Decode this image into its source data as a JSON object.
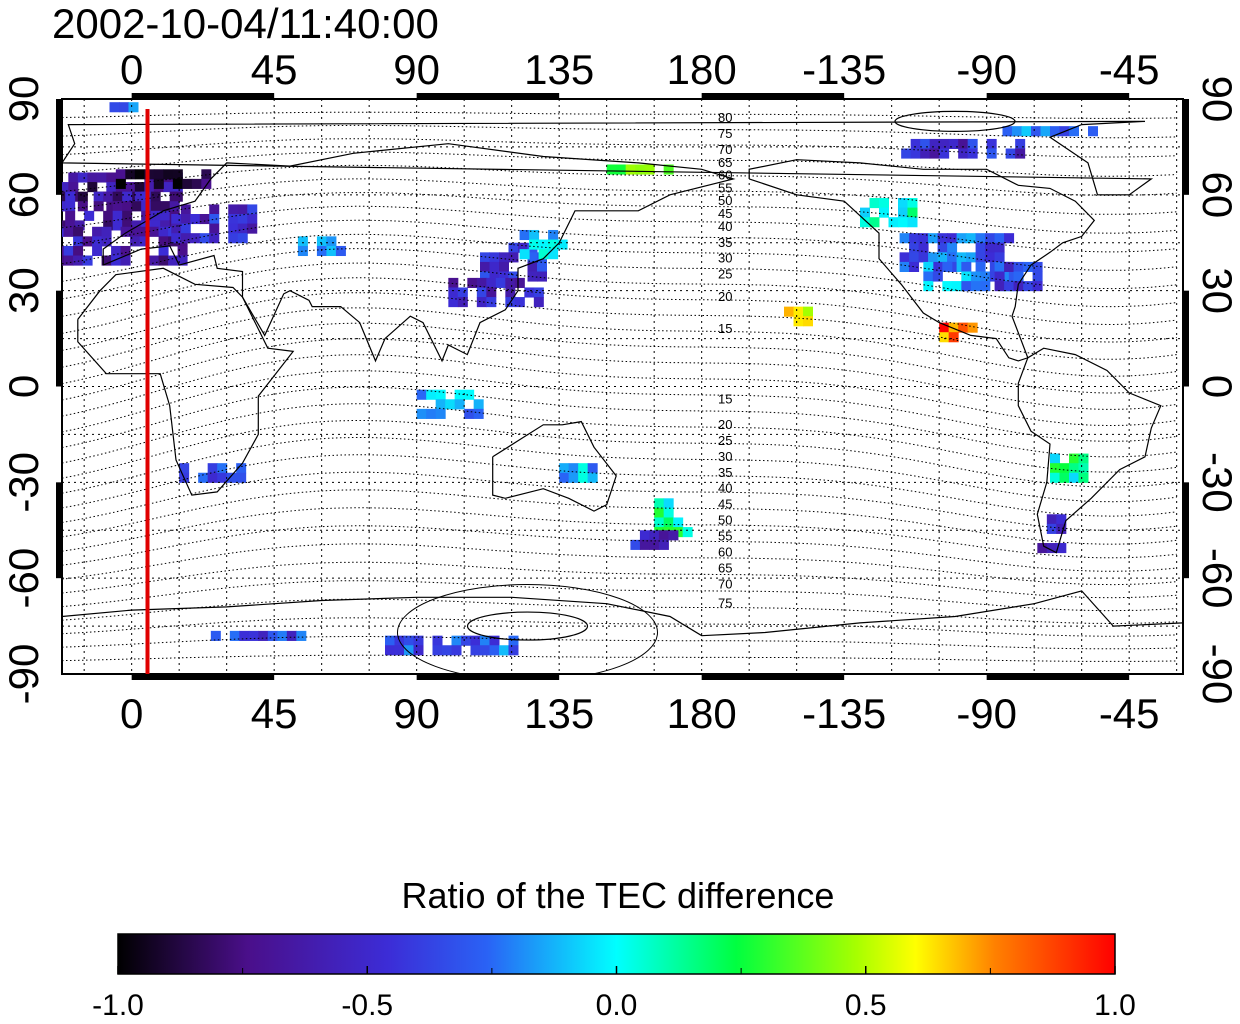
{
  "timestamp": "2002-10-04/11:40:00",
  "chart_data": {
    "type": "heatmap",
    "title": "2002-10-04/11:40:00",
    "x_ticks": [
      "0",
      "45",
      "90",
      "135",
      "180",
      "-135",
      "-90",
      "-45"
    ],
    "y_ticks": [
      "90",
      "60",
      "30",
      "0",
      "-30",
      "-60",
      "-90"
    ],
    "longitude_range_east": [
      -22,
      332
    ],
    "latitude_range": [
      -90,
      90
    ],
    "grid": "dotted, 15 degree spacing",
    "marker_longitude": 5,
    "marker_color": "#e00000",
    "contour_labels_north": [
      "80",
      "75",
      "70",
      "65",
      "60",
      "55",
      "50",
      "45",
      "40",
      "35",
      "30",
      "25",
      "20",
      "15"
    ],
    "contour_labels_south": [
      "15",
      "20",
      "25",
      "30",
      "35",
      "40",
      "45",
      "50",
      "55",
      "60",
      "65",
      "70",
      "75"
    ],
    "colorbar": {
      "label": "Ratio of the TEC difference",
      "min": -1.0,
      "max": 1.0,
      "ticks": [
        "-1.0",
        "-0.5",
        "0.0",
        "0.5",
        "1.0"
      ]
    },
    "patches": [
      {
        "lon": -10,
        "lat": 62,
        "w": 50,
        "h": 10,
        "v": -0.7
      },
      {
        "lon": -15,
        "lat": 55,
        "w": 60,
        "h": 12,
        "v": -0.65
      },
      {
        "lon": -12,
        "lat": 45,
        "w": 55,
        "h": 10,
        "v": -0.6
      },
      {
        "lon": 10,
        "lat": 65,
        "w": 30,
        "h": 6,
        "v": -0.85
      },
      {
        "lon": 25,
        "lat": 52,
        "w": 25,
        "h": 10,
        "v": -0.5
      },
      {
        "lon": 120,
        "lat": 40,
        "w": 20,
        "h": 10,
        "v": -0.45
      },
      {
        "lon": 115,
        "lat": 30,
        "w": 30,
        "h": 8,
        "v": -0.55
      },
      {
        "lon": 130,
        "lat": 45,
        "w": 15,
        "h": 8,
        "v": -0.1
      },
      {
        "lon": 100,
        "lat": -5,
        "w": 20,
        "h": 8,
        "v": -0.15
      },
      {
        "lon": 25,
        "lat": -27,
        "w": 20,
        "h": 6,
        "v": -0.3
      },
      {
        "lon": 140,
        "lat": -27,
        "w": 10,
        "h": 6,
        "v": -0.1
      },
      {
        "lon": 170,
        "lat": -40,
        "w": 10,
        "h": 10,
        "v": 0.1
      },
      {
        "lon": 165,
        "lat": -47,
        "w": 15,
        "h": 4,
        "v": -0.5
      },
      {
        "lon": -120,
        "lat": 55,
        "w": 20,
        "h": 8,
        "v": 0.1
      },
      {
        "lon": -100,
        "lat": 43,
        "w": 35,
        "h": 10,
        "v": -0.3
      },
      {
        "lon": -95,
        "lat": 35,
        "w": 30,
        "h": 8,
        "v": -0.2
      },
      {
        "lon": -80,
        "lat": 35,
        "w": 15,
        "h": 8,
        "v": -0.4
      },
      {
        "lon": -100,
        "lat": 18,
        "w": 10,
        "h": 4,
        "v": 0.8
      },
      {
        "lon": -65,
        "lat": -25,
        "w": 10,
        "h": 8,
        "v": 0.1
      },
      {
        "lon": -70,
        "lat": -45,
        "w": 8,
        "h": 10,
        "v": -0.5
      },
      {
        "lon": -100,
        "lat": 75,
        "w": 40,
        "h": 5,
        "v": -0.5
      },
      {
        "lon": -70,
        "lat": 80,
        "w": 30,
        "h": 3,
        "v": -0.2
      },
      {
        "lon": 160,
        "lat": 68,
        "w": 20,
        "h": 3,
        "v": 0.3
      },
      {
        "lon": 60,
        "lat": 45,
        "w": 15,
        "h": 4,
        "v": -0.1
      },
      {
        "lon": 100,
        "lat": -80,
        "w": 40,
        "h": 4,
        "v": -0.3
      },
      {
        "lon": 40,
        "lat": -78,
        "w": 30,
        "h": 3,
        "v": -0.35
      },
      {
        "lon": -150,
        "lat": 23,
        "w": 8,
        "h": 4,
        "v": 0.6
      },
      {
        "lon": 0,
        "lat": 88,
        "w": 20,
        "h": 2,
        "v": -0.3
      }
    ]
  }
}
